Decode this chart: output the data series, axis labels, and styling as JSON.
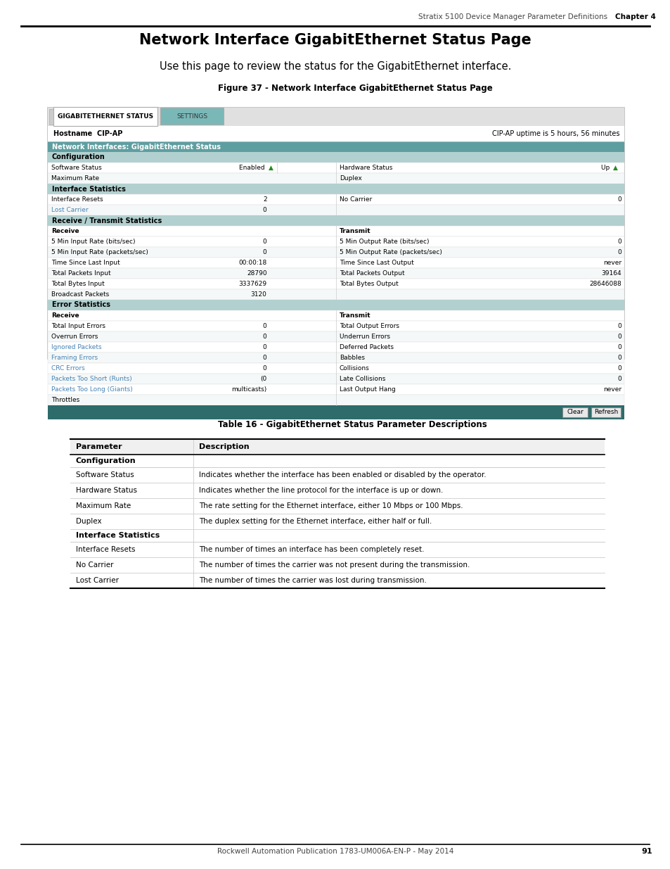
{
  "page_title": "Network Interface GigabitEthernet Status Page",
  "header_text": "Stratix 5100 Device Manager Parameter Definitions",
  "chapter_text": "Chapter 4",
  "subtitle": "Use this page to review the status for the GigabitEthernet interface.",
  "figure_label": "Figure 37 - Network Interface GigabitEthernet Status Page",
  "tab1": "GIGABITETHERNET STATUS",
  "tab2": "SETTINGS",
  "hostname_label": "Hostname  CIP-AP",
  "uptime_text": "CIP-AP uptime is 5 hours, 56 minutes",
  "section_header": "Network Interfaces: GigabitEthernet Status",
  "teal_header_color": "#5f9ea0",
  "link_color": "#4682b4",
  "green_color": "#228b22",
  "footer_text": "Rockwell Automation Publication 1783-UM006A-EN-P - May 2014",
  "page_number": "91",
  "table_title": "Table 16 - GigabitEthernet Status Parameter Descriptions",
  "table_col1_header": "Parameter",
  "table_col2_header": "Description",
  "table_section1": "Configuration",
  "table_rows_config": [
    [
      "Software Status",
      "Indicates whether the interface has been enabled or disabled by the operator."
    ],
    [
      "Hardware Status",
      "Indicates whether the line protocol for the interface is up or down."
    ],
    [
      "Maximum Rate",
      "The rate setting for the Ethernet interface, either 10 Mbps or 100 Mbps."
    ],
    [
      "Duplex",
      "The duplex setting for the Ethernet interface, either half or full."
    ]
  ],
  "table_section2": "Interface Statistics",
  "table_rows_interface": [
    [
      "Interface Resets",
      "The number of times an interface has been completely reset."
    ],
    [
      "No Carrier",
      "The number of times the carrier was not present during the transmission."
    ],
    [
      "Lost Carrier",
      "The number of times the carrier was lost during transmission."
    ]
  ]
}
